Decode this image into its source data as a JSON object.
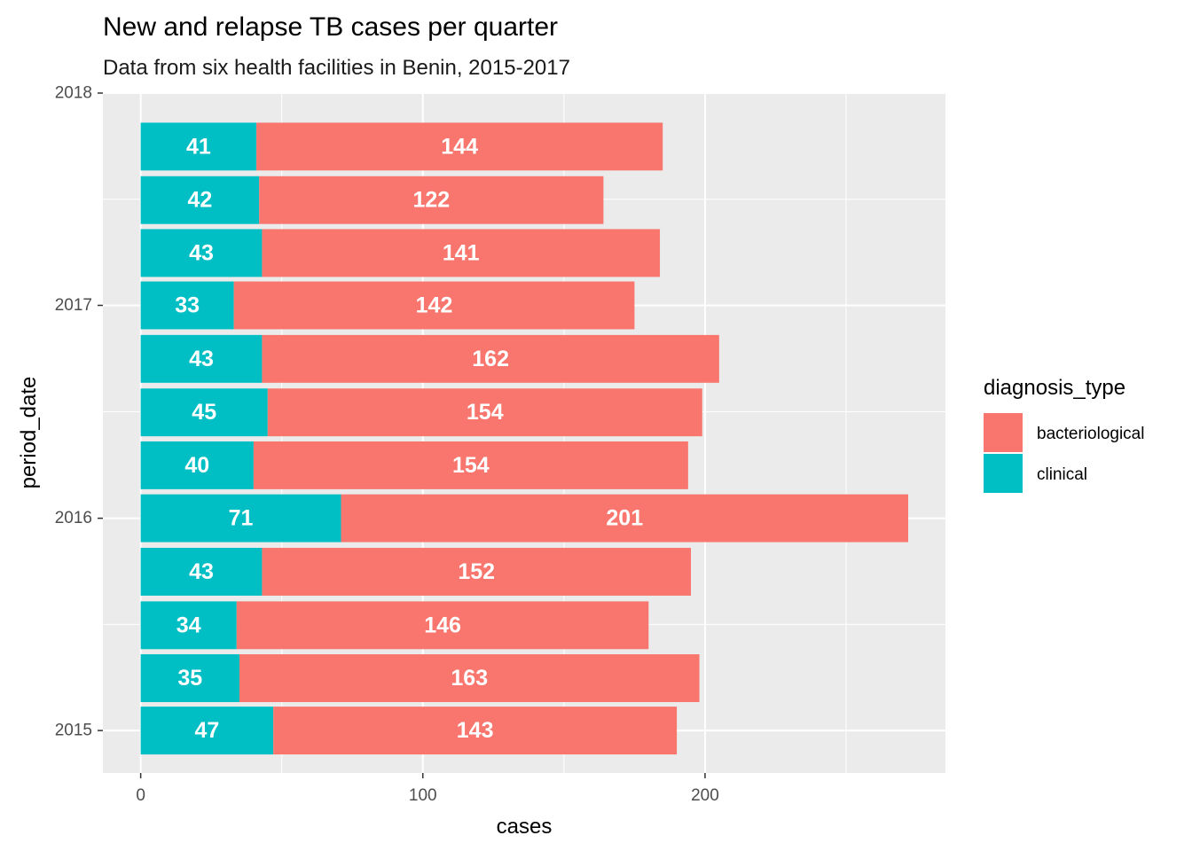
{
  "chart_data": {
    "type": "bar",
    "orientation": "horizontal",
    "stacked": true,
    "title": "New and relapse TB cases per quarter",
    "subtitle": "Data from six health facilities in Benin, 2015-2017",
    "xlabel": "cases",
    "ylabel": "period_date",
    "xlim": [
      -13.4,
      285.2
    ],
    "ylim": [
      "2014-10-20",
      "2018-01-01"
    ],
    "x_ticks": [
      0,
      100,
      200
    ],
    "y_ticks": [
      "2015",
      "2016",
      "2017",
      "2018"
    ],
    "grid": true,
    "legend": {
      "title": "diagnosis_type",
      "position": "right",
      "entries": [
        "bacteriological",
        "clinical"
      ]
    },
    "categories": [
      "2015-01-01",
      "2015-04-01",
      "2015-07-01",
      "2015-10-01",
      "2016-01-01",
      "2016-04-01",
      "2016-07-01",
      "2016-10-01",
      "2017-01-01",
      "2017-04-01",
      "2017-07-01",
      "2017-10-01"
    ],
    "series": [
      {
        "name": "clinical",
        "color": "#00BFC4",
        "values": [
          47,
          35,
          34,
          43,
          71,
          40,
          45,
          43,
          33,
          43,
          42,
          41
        ]
      },
      {
        "name": "bacteriological",
        "color": "#F8766D",
        "values": [
          143,
          163,
          146,
          152,
          201,
          154,
          154,
          162,
          142,
          141,
          122,
          144
        ]
      }
    ]
  }
}
